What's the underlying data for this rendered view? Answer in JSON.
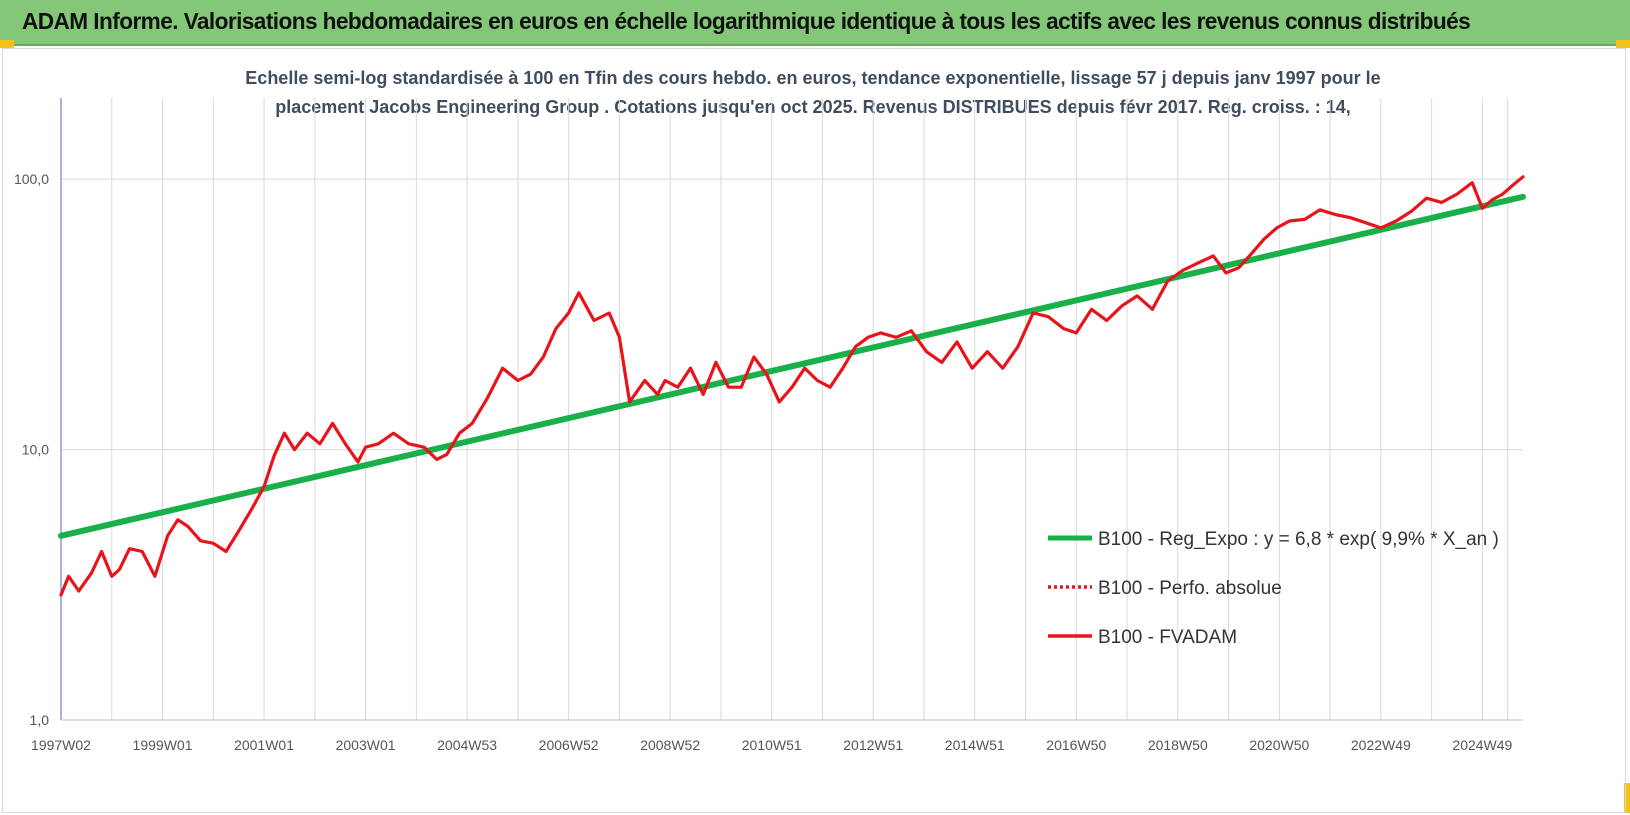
{
  "header": {
    "title": "ADAM Informe. Valorisations hebdomadaires en euros en échelle logarithmique identique à tous les actifs avec les revenus connus distribués"
  },
  "colors": {
    "header_bg": "#84c779",
    "corner": "#f3c317",
    "trend": "#19b04a",
    "perf": "#e8141b",
    "fvadam": "#e8141b",
    "grid": "#d9d9d9",
    "axis": "#6a86c4"
  },
  "chart_data": {
    "type": "line",
    "title_lines": [
      "Echelle semi-log standardisée à 100 en Tfin des cours hebdo. en euros, tendance exponentielle, lissage 57 j depuis janv 1997 pour le",
      "placement Jacobs Engineering Group . Cotations jusqu'en oct 2025. Revenus DISTRIBUES depuis févr 2017. Reg. croiss. : 14,"
    ],
    "y_scale": "log",
    "ylim": [
      1,
      100
    ],
    "y_ticks": [
      {
        "value": 1,
        "label": "1,0"
      },
      {
        "value": 10,
        "label": "10,0"
      },
      {
        "value": 100,
        "label": "100,0"
      }
    ],
    "xlim": [
      1997.0,
      2025.8
    ],
    "x_ticks": [
      {
        "value": 1997.0,
        "label": "1997W02"
      },
      {
        "value": 1999.0,
        "label": "1999W01"
      },
      {
        "value": 2001.0,
        "label": "2001W01"
      },
      {
        "value": 2003.0,
        "label": "2003W01"
      },
      {
        "value": 2005.0,
        "label": "2004W53"
      },
      {
        "value": 2007.0,
        "label": "2006W52"
      },
      {
        "value": 2009.0,
        "label": "2008W52"
      },
      {
        "value": 2011.0,
        "label": "2010W51"
      },
      {
        "value": 2013.0,
        "label": "2012W51"
      },
      {
        "value": 2015.0,
        "label": "2014W51"
      },
      {
        "value": 2017.0,
        "label": "2016W50"
      },
      {
        "value": 2019.0,
        "label": "2018W50"
      },
      {
        "value": 2021.0,
        "label": "2020W50"
      },
      {
        "value": 2023.0,
        "label": "2022W49"
      },
      {
        "value": 2025.0,
        "label": "2024W49"
      }
    ],
    "grid": {
      "vertical": true,
      "horizontal": true
    },
    "legend_position": "right",
    "series": [
      {
        "name": "B100 - Reg_Expo : y = 6,8 * exp( 9,9% *  X_an )",
        "style": "solid",
        "color": "#19b04a",
        "x": [
          1997.0,
          2025.8
        ],
        "y": [
          4.8,
          86
        ]
      },
      {
        "name": "B100 - Perfo. absolue",
        "style": "dotted",
        "color": "#e8141b",
        "x": [],
        "y": []
      },
      {
        "name": "B100 - FVADAM",
        "style": "solid",
        "color": "#e8141b",
        "x": [
          1997.0,
          1997.15,
          1997.35,
          1997.6,
          1997.8,
          1998.0,
          1998.15,
          1998.35,
          1998.6,
          1998.85,
          1999.1,
          1999.3,
          1999.5,
          1999.75,
          2000.0,
          2000.25,
          2000.5,
          2000.75,
          2001.0,
          2001.2,
          2001.4,
          2001.6,
          2001.85,
          2002.1,
          2002.35,
          2002.6,
          2002.85,
          2003.0,
          2003.25,
          2003.55,
          2003.85,
          2004.15,
          2004.4,
          2004.6,
          2004.85,
          2005.1,
          2005.4,
          2005.7,
          2006.0,
          2006.25,
          2006.5,
          2006.75,
          2007.0,
          2007.2,
          2007.5,
          2007.8,
          2008.0,
          2008.2,
          2008.5,
          2008.75,
          2008.9,
          2009.15,
          2009.4,
          2009.65,
          2009.9,
          2010.15,
          2010.4,
          2010.65,
          2010.9,
          2011.15,
          2011.4,
          2011.65,
          2011.9,
          2012.15,
          2012.4,
          2012.65,
          2012.9,
          2013.15,
          2013.45,
          2013.75,
          2014.05,
          2014.35,
          2014.65,
          2014.95,
          2015.25,
          2015.55,
          2015.85,
          2016.15,
          2016.45,
          2016.75,
          2017.0,
          2017.3,
          2017.6,
          2017.9,
          2018.2,
          2018.5,
          2018.8,
          2019.1,
          2019.4,
          2019.7,
          2019.95,
          2020.2,
          2020.45,
          2020.7,
          2020.95,
          2021.2,
          2021.5,
          2021.8,
          2022.1,
          2022.4,
          2022.7,
          2023.0,
          2023.3,
          2023.6,
          2023.9,
          2024.2,
          2024.5,
          2024.8,
          2025.0,
          2025.2,
          2025.4,
          2025.6,
          2025.8
        ],
        "y": [
          2.9,
          3.4,
          3.0,
          3.5,
          4.2,
          3.4,
          3.6,
          4.3,
          4.2,
          3.4,
          4.8,
          5.5,
          5.2,
          4.6,
          4.5,
          4.2,
          5.0,
          6.0,
          7.3,
          9.5,
          11.5,
          10.0,
          11.5,
          10.5,
          12.5,
          10.5,
          9.0,
          10.2,
          10.5,
          11.5,
          10.5,
          10.2,
          9.2,
          9.6,
          11.5,
          12.5,
          15.5,
          20.0,
          18.0,
          19.0,
          22.0,
          28.0,
          32.0,
          38.0,
          30.0,
          32.0,
          26.0,
          15.0,
          18.0,
          16.0,
          18.0,
          17.0,
          20.0,
          16.0,
          21.0,
          17.0,
          17.0,
          22.0,
          19.0,
          15.0,
          17.0,
          20.0,
          18.0,
          17.0,
          20.0,
          24.0,
          26.0,
          27.0,
          26.0,
          27.5,
          23.0,
          21.0,
          25.0,
          20.0,
          23.0,
          20.0,
          24.0,
          32.0,
          31.0,
          28.0,
          27.0,
          33.0,
          30.0,
          34.0,
          37.0,
          33.0,
          42.0,
          46.0,
          49.0,
          52.0,
          45.0,
          47.0,
          53.0,
          60.0,
          66.0,
          70.0,
          71.0,
          77.0,
          74.0,
          72.0,
          69.0,
          66.0,
          70.0,
          76.0,
          85.0,
          82.0,
          88.0,
          97.0,
          78.0,
          84.0,
          88.0,
          95.0,
          102.0
        ]
      }
    ]
  }
}
